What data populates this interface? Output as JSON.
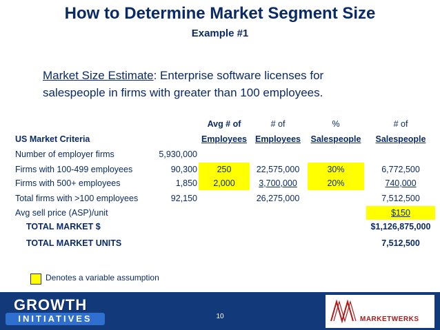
{
  "header": {
    "title": "How to Determine Market Segment Size",
    "subtitle": "Example #1"
  },
  "description": {
    "lead": "Market Size Estimate",
    "text_line1": ":  Enterprise software licenses for",
    "text_line2": "salespeople in firms with greater than 100 employees."
  },
  "table": {
    "header_row1": {
      "avg": "Avg # of",
      "num": "# of",
      "pct": "%",
      "num_sales": "# of"
    },
    "header_row2": {
      "criteria": "US Market Criteria",
      "avg": "Employees",
      "num": "Employees",
      "pct": "Salespeople",
      "num_sales": "Salespeople"
    },
    "rows": [
      {
        "label": "Number of employer firms",
        "firms": "5,930,000",
        "avg": "",
        "employees": "",
        "pct": "",
        "salespeople": ""
      },
      {
        "label": "Firms with 100-499 employees",
        "firms": "90,300",
        "avg": "250",
        "employees": "22,575,000",
        "pct": "30%",
        "salespeople": "6,772,500"
      },
      {
        "label": "Firms with 500+ employees",
        "firms": "1,850",
        "avg": "2,000",
        "employees": "3,700,000",
        "pct": "20%",
        "salespeople": "740,000"
      },
      {
        "label": "Total firms with >100 employees",
        "firms": "92,150",
        "avg": "",
        "employees": "26,275,000",
        "pct": "",
        "salespeople": "7,512,500"
      },
      {
        "label": "Avg sell price (ASP)/unit",
        "firms": "",
        "avg": "",
        "employees": "",
        "pct": "",
        "salespeople": "$150"
      }
    ],
    "totals": [
      {
        "label": "TOTAL MARKET $",
        "value": "$1,126,875,000"
      },
      {
        "label": "TOTAL MARKET UNITS",
        "value": "7,512,500"
      }
    ]
  },
  "legend": {
    "text": "Denotes a variable assumption",
    "color": "#ffff00"
  },
  "footer": {
    "logo_left_line1": "GROWTH",
    "logo_left_line2": "INITIATIVES",
    "page_number": "10",
    "logo_right": "MARKETWERKS",
    "bar_color": "#123a7a"
  }
}
